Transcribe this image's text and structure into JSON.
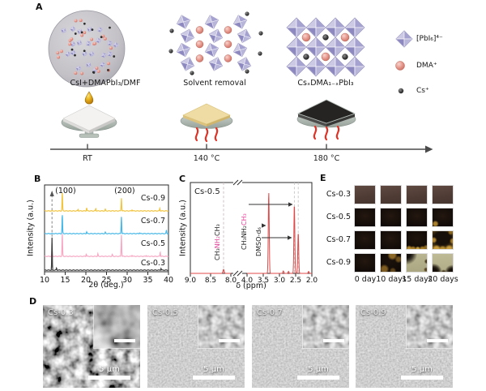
{
  "figure": {
    "panel_labels": {
      "A": "A",
      "B": "B",
      "C": "C",
      "D": "D",
      "E": "E"
    }
  },
  "panelA": {
    "captions": [
      "CsI+DMAPbI₃/DMF",
      "Solvent removal",
      "CsₓDMA₁₋ₓPbI₃"
    ],
    "legend": [
      {
        "icon": "octahedron-icon",
        "label": "[PbI₆]⁴⁻"
      },
      {
        "icon": "pink-sphere-icon",
        "label": "DMA⁺"
      },
      {
        "icon": "black-sphere-icon",
        "label": "Cs⁺"
      }
    ],
    "timeline": [
      "RT",
      "140 °C",
      "180 °C"
    ]
  },
  "chart_data": [
    {
      "id": "xrd",
      "type": "line",
      "xlabel": "2θ (deg.)",
      "ylabel": "Intensity (a.u.)",
      "xlim": [
        10,
        40
      ],
      "xticks": [
        10,
        15,
        20,
        25,
        30,
        35,
        40
      ],
      "grid": false,
      "dashed_guide_x": 11.8,
      "annotations": [
        {
          "text": "(100)",
          "x": 14.3
        },
        {
          "text": "(200)",
          "x": 28.6
        }
      ],
      "series": [
        {
          "name": "Cs-0.9",
          "color": "#f2c43d",
          "peaks": [
            [
              14.3,
              0.6
            ],
            [
              18.1,
              0.05
            ],
            [
              20.2,
              0.1
            ],
            [
              22.4,
              0.08
            ],
            [
              24.7,
              0.05
            ],
            [
              28.6,
              0.42
            ],
            [
              31.2,
              0.04
            ],
            [
              37.9,
              0.08
            ]
          ]
        },
        {
          "name": "Cs-0.7",
          "color": "#45b7e8",
          "peaks": [
            [
              14.3,
              0.62
            ],
            [
              20.2,
              0.06
            ],
            [
              24.7,
              0.04
            ],
            [
              28.6,
              0.55
            ],
            [
              33.0,
              0.03
            ],
            [
              39.5,
              0.1
            ]
          ]
        },
        {
          "name": "Cs-0.5",
          "color": "#f8a8c4",
          "peaks": [
            [
              11.8,
              0.22
            ],
            [
              14.3,
              0.75
            ],
            [
              20.1,
              0.08
            ],
            [
              22.9,
              0.08
            ],
            [
              26.4,
              0.06
            ],
            [
              28.6,
              0.7
            ],
            [
              31.2,
              0.04
            ],
            [
              34.6,
              0.03
            ],
            [
              38.0,
              0.14
            ]
          ]
        },
        {
          "name": "Cs-0.3",
          "color": "#3c3c3c",
          "peaks": [
            [
              11.8,
              1.05
            ],
            [
              12.9,
              0.07
            ],
            [
              25.3,
              0.02
            ],
            [
              38.2,
              0.06
            ]
          ]
        }
      ]
    },
    {
      "id": "nmr",
      "type": "line",
      "sample": "Cs-0.5",
      "xlabel": "δ (ppm)",
      "ylabel": "Intensity (a.u.)",
      "xticks": [
        9.0,
        8.5,
        8.0,
        4.0,
        3.5,
        3.0,
        2.5,
        2.0
      ],
      "axis_break": [
        8.0,
        4.0
      ],
      "color": "#e04848",
      "highlight_color": "#e6419a",
      "peaks": [
        [
          8.18,
          0.05
        ],
        [
          3.33,
          1.0
        ],
        [
          2.88,
          0.03
        ],
        [
          2.72,
          0.025
        ],
        [
          2.54,
          0.85
        ],
        [
          2.42,
          0.5
        ],
        [
          2.1,
          0.025
        ]
      ],
      "dashed_guides": [
        8.18,
        2.54,
        2.42
      ],
      "annotations": [
        {
          "id": "nh2-label",
          "parts": [
            {
              "t": "CH₃",
              "hl": false
            },
            {
              "t": "NH₂",
              "hl": true
            },
            {
              "t": "CH₃",
              "hl": false
            }
          ]
        },
        {
          "id": "ch3-label",
          "parts": [
            {
              "t": "CH₃NH₂",
              "hl": false
            },
            {
              "t": "CH₃",
              "hl": true
            }
          ]
        },
        {
          "id": "dmso-label",
          "parts": [
            {
              "t": "DMSO-d₆",
              "hl": false
            }
          ]
        }
      ]
    }
  ],
  "panelD": {
    "images": [
      {
        "name": "Cs-0.3",
        "scalebar": "5 μm"
      },
      {
        "name": "Cs-0.5",
        "scalebar": "5 μm"
      },
      {
        "name": "Cs-0.7",
        "scalebar": "5 μm"
      },
      {
        "name": "Cs-0.9",
        "scalebar": "5 μm"
      }
    ]
  },
  "panelE": {
    "rows": [
      {
        "name": "Cs-0.3",
        "cells": [
          "intact-brown",
          "intact-brown",
          "intact-brown",
          "intact-brown"
        ]
      },
      {
        "name": "Cs-0.5",
        "cells": [
          "intact-dark",
          "intact-dark",
          "intact-dark",
          "dark-minor-speck"
        ]
      },
      {
        "name": "Cs-0.7",
        "cells": [
          "intact-dark",
          "intact-dark",
          "dark-bottom-degradation",
          "dark-edge-degradation"
        ]
      },
      {
        "name": "Cs-0.9",
        "cells": [
          "intact-dark",
          "dark-yellow-patches",
          "degraded-pale-dark-corner",
          "degraded-pale-dark-bottom"
        ]
      }
    ],
    "columns": [
      "0 day",
      "10 days",
      "15 days",
      "20 days"
    ]
  }
}
